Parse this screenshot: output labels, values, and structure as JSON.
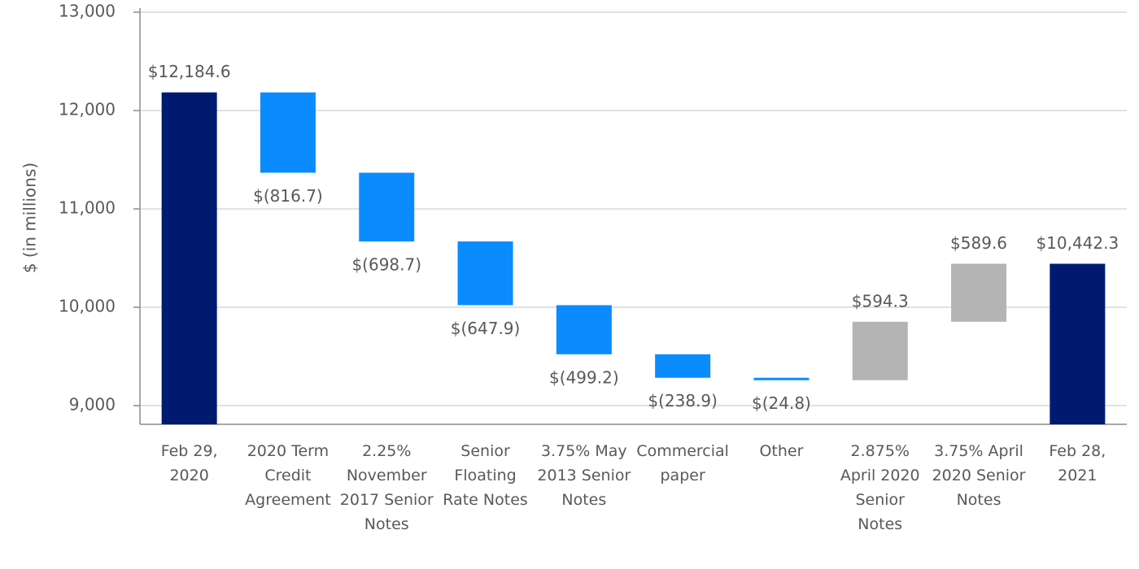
{
  "chart_data": {
    "type": "waterfall",
    "y_label": "$ (in millions)",
    "categories": [
      "Feb 29, 2020",
      "2020 Term Credit Agreement",
      "2.25% November 2017 Senior Notes",
      "Senior Floating Rate Notes",
      "3.75% May 2013 Senior Notes",
      "Commercial paper",
      "Other",
      "2.875% April 2020 Senior Notes",
      "3.75% April 2020 Senior Notes",
      "Feb 28, 2021"
    ],
    "values": [
      12184.6,
      -816.7,
      -698.7,
      -647.9,
      -499.2,
      -238.9,
      -24.8,
      594.3,
      589.6,
      10442.3
    ],
    "value_labels": [
      "$12,184.6",
      "$(816.7)",
      "$(698.7)",
      "$(647.9)",
      "$(499.2)",
      "$(238.9)",
      "$(24.8)",
      "$594.3",
      "$589.6",
      "$10,442.3"
    ],
    "colors": [
      "#001a70",
      "#0a8cff",
      "#0a8cff",
      "#0a8cff",
      "#0a8cff",
      "#0a8cff",
      "#0a8cff",
      "#b4b4b4",
      "#b4b4b4",
      "#001a70"
    ],
    "ylim": [
      8810,
      13000
    ],
    "yticks": [
      {
        "value": 9000,
        "label": "9,000"
      },
      {
        "value": 10000,
        "label": "10,000"
      },
      {
        "value": 11000,
        "label": "11,000"
      },
      {
        "value": 12000,
        "label": "12,000"
      },
      {
        "value": 13000,
        "label": "13,000"
      }
    ],
    "grid": true
  }
}
